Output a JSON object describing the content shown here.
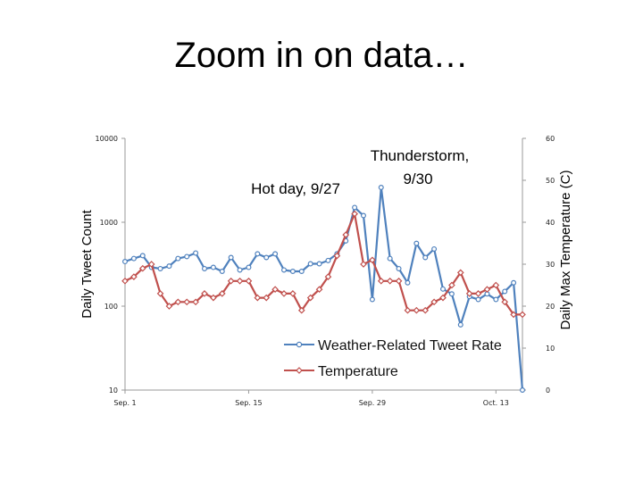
{
  "slide": {
    "title": "Zoom in on data…"
  },
  "chart_data": {
    "type": "line",
    "title": "",
    "ylabel": "Daily Tweet Count",
    "y2label": "Daily Max Temperature (C)",
    "yscale": "log",
    "ylim": [
      10,
      10000
    ],
    "y2lim": [
      0,
      60
    ],
    "y_ticks": [
      "10",
      "100",
      "1000",
      "10000"
    ],
    "y2_ticks": [
      "0",
      "10",
      "20",
      "30",
      "40",
      "50",
      "60"
    ],
    "x_ticks": [
      {
        "day": 1,
        "label": "Sep. 1"
      },
      {
        "day": 15,
        "label": "Sep. 15"
      },
      {
        "day": 29,
        "label": "Sep. 29"
      },
      {
        "day": 43,
        "label": "Oct. 13"
      }
    ],
    "annotations": [
      {
        "lines": [
          "Hot day, 9/27"
        ]
      },
      {
        "lines": [
          "Thunderstorm,",
          "9/30"
        ]
      }
    ],
    "legend_position": "bottom-right",
    "series": [
      {
        "name": "Weather-Related Tweet Rate",
        "axis": "left",
        "color": "#4f81bd",
        "x": [
          1,
          2,
          3,
          4,
          5,
          6,
          7,
          8,
          9,
          10,
          11,
          12,
          13,
          14,
          15,
          16,
          17,
          18,
          19,
          20,
          21,
          22,
          23,
          24,
          25,
          26,
          27,
          28,
          29,
          30,
          31,
          32,
          33,
          34,
          35,
          36,
          37,
          38,
          39,
          40,
          41,
          42,
          43,
          44,
          45,
          46
        ],
        "values": [
          340,
          370,
          400,
          290,
          280,
          300,
          370,
          390,
          430,
          280,
          290,
          260,
          380,
          270,
          290,
          420,
          380,
          420,
          270,
          260,
          260,
          320,
          320,
          350,
          420,
          600,
          1500,
          1200,
          120,
          2600,
          370,
          280,
          190,
          560,
          380,
          480,
          160,
          140,
          60,
          130,
          120,
          140,
          120,
          150,
          190,
          10
        ]
      },
      {
        "name": "Temperature",
        "axis": "right",
        "color": "#c0504d",
        "x": [
          1,
          2,
          3,
          4,
          5,
          6,
          7,
          8,
          9,
          10,
          11,
          12,
          13,
          14,
          15,
          16,
          17,
          18,
          19,
          20,
          21,
          22,
          23,
          24,
          25,
          26,
          27,
          28,
          29,
          30,
          31,
          32,
          33,
          34,
          35,
          36,
          37,
          38,
          39,
          40,
          41,
          42,
          43,
          44,
          45,
          46
        ],
        "values": [
          26,
          27,
          29,
          30,
          23,
          20,
          21,
          21,
          21,
          23,
          22,
          23,
          26,
          26,
          26,
          22,
          22,
          24,
          23,
          23,
          19,
          22,
          24,
          27,
          32,
          37,
          42,
          30,
          31,
          26,
          26,
          26,
          19,
          19,
          19,
          21,
          22,
          25,
          28,
          23,
          23,
          24,
          25,
          21,
          18,
          18
        ]
      }
    ]
  }
}
